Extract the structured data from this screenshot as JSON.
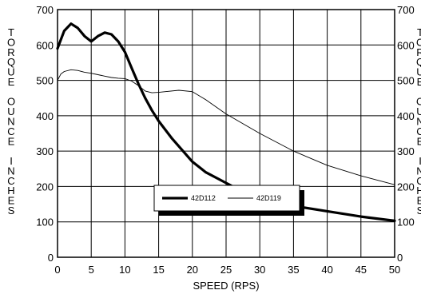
{
  "chart_data": {
    "type": "line",
    "xlabel": "SPEED (RPS)",
    "ylabel_left": "TORQUE OUNCE INCHES",
    "ylabel_right": "TORQUE OUNCE INCHES",
    "xlim": [
      0,
      50
    ],
    "ylim": [
      0,
      700
    ],
    "x_ticks": [
      "0",
      "5",
      "10",
      "15",
      "20",
      "25",
      "30",
      "35",
      "40",
      "45",
      "50"
    ],
    "y_ticks": [
      "0",
      "100",
      "200",
      "300",
      "400",
      "500",
      "600",
      "700"
    ],
    "grid": true,
    "legend": {
      "position": "bottom-center"
    },
    "series": [
      {
        "name": "42D112",
        "style": "thick",
        "x": [
          0,
          0.5,
          1,
          2,
          3,
          4,
          5,
          6,
          7,
          8,
          9,
          10,
          11,
          12,
          13,
          14,
          15,
          17,
          20,
          22,
          25,
          28,
          30,
          35,
          40,
          45,
          50
        ],
        "y": [
          590,
          615,
          640,
          660,
          648,
          625,
          610,
          625,
          635,
          630,
          610,
          580,
          535,
          490,
          450,
          415,
          385,
          335,
          270,
          240,
          210,
          180,
          165,
          145,
          130,
          115,
          103
        ]
      },
      {
        "name": "42D119",
        "style": "thin",
        "x": [
          0,
          0.5,
          1,
          2,
          3,
          4,
          5,
          6,
          7,
          8,
          9,
          10,
          11,
          12,
          13,
          14,
          15,
          16,
          18,
          20,
          22,
          25,
          30,
          35,
          40,
          45,
          50
        ],
        "y": [
          500,
          518,
          525,
          530,
          528,
          523,
          520,
          516,
          512,
          508,
          506,
          505,
          498,
          485,
          470,
          465,
          466,
          468,
          472,
          468,
          445,
          405,
          350,
          300,
          260,
          230,
          205
        ]
      }
    ]
  }
}
